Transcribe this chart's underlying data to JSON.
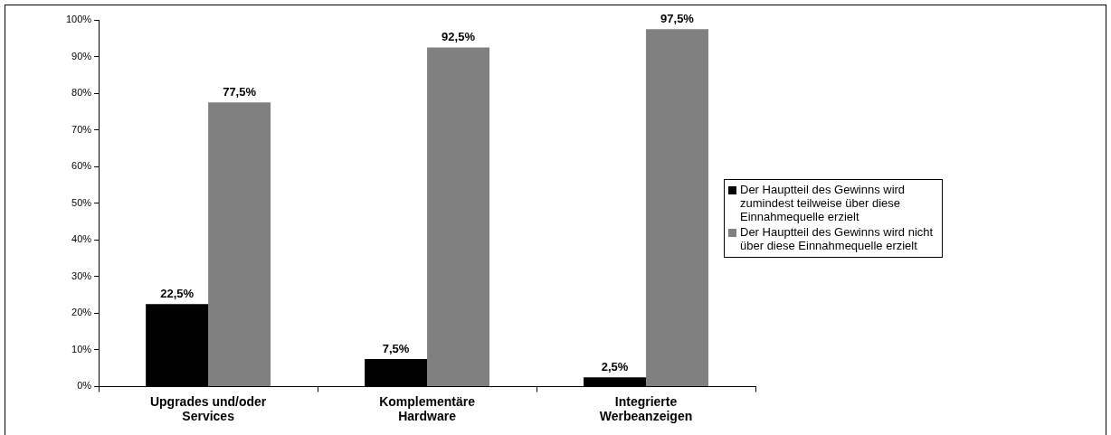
{
  "chart_data": {
    "type": "bar",
    "categories": [
      "Upgrades und/oder Services",
      "Komplementäre Hardware",
      "Integrierte Werbeanzeigen"
    ],
    "series": [
      {
        "name": "Der Hauptteil des Gewinns wird zumindest teilweise über diese Einnahmequelle erzielt",
        "color": "#000000",
        "values": [
          22.5,
          7.5,
          2.5
        ],
        "value_labels": [
          "22,5%",
          "7,5%",
          "2,5%"
        ]
      },
      {
        "name": "Der Hauptteil des Gewinns wird nicht über diese Einnahmequelle erzielt",
        "color": "#808080",
        "values": [
          77.5,
          92.5,
          97.5
        ],
        "value_labels": [
          "77,5%",
          "92,5%",
          "97,5%"
        ]
      }
    ],
    "ylim": [
      0,
      100
    ],
    "yticks": [
      {
        "value": 0,
        "label": "0%"
      },
      {
        "value": 10,
        "label": "10%"
      },
      {
        "value": 20,
        "label": "20%"
      },
      {
        "value": 30,
        "label": "30%"
      },
      {
        "value": 40,
        "label": "40%"
      },
      {
        "value": 50,
        "label": "50%"
      },
      {
        "value": 60,
        "label": "60%"
      },
      {
        "value": 70,
        "label": "70%"
      },
      {
        "value": 80,
        "label": "80%"
      },
      {
        "value": 90,
        "label": "90%"
      },
      {
        "value": 100,
        "label": "100%"
      }
    ],
    "grid": false,
    "legend": "right"
  }
}
